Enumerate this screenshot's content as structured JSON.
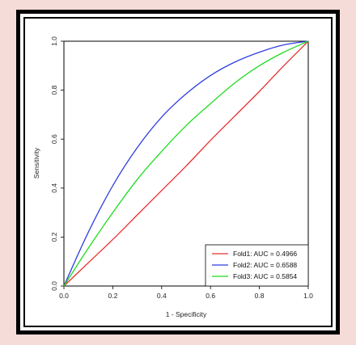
{
  "chart_data": {
    "type": "line",
    "title": "",
    "xlabel": "1 - Specificity",
    "ylabel": "Sensitivity",
    "xlim": [
      0,
      1
    ],
    "ylim": [
      0,
      1
    ],
    "xticks": [
      "0.0",
      "0.2",
      "0.4",
      "0.6",
      "0.8",
      "1.0"
    ],
    "yticks": [
      "0.0",
      "0.2",
      "0.4",
      "0.6",
      "0.8",
      "1.0"
    ],
    "grid": false,
    "legend_position": "bottom-right",
    "series": [
      {
        "name": "Fold1: AUC = 0.4966",
        "color": "#e8302f",
        "x": [
          0,
          0.1,
          0.2,
          0.3,
          0.4,
          0.5,
          0.6,
          0.7,
          0.8,
          0.9,
          1.0
        ],
        "y": [
          0,
          0.095,
          0.19,
          0.29,
          0.39,
          0.49,
          0.595,
          0.695,
          0.795,
          0.9,
          1.0
        ]
      },
      {
        "name": "Fold2: AUC = 0.6588",
        "color": "#2f3fe0",
        "x": [
          0,
          0.1,
          0.2,
          0.3,
          0.4,
          0.5,
          0.6,
          0.7,
          0.8,
          0.9,
          1.0
        ],
        "y": [
          0,
          0.22,
          0.41,
          0.565,
          0.69,
          0.785,
          0.86,
          0.915,
          0.955,
          0.985,
          1.0
        ]
      },
      {
        "name": "Fold3: AUC = 0.5854",
        "color": "#1fdc1f",
        "x": [
          0,
          0.1,
          0.2,
          0.3,
          0.4,
          0.5,
          0.6,
          0.7,
          0.8,
          0.9,
          1.0
        ],
        "y": [
          0,
          0.155,
          0.3,
          0.435,
          0.55,
          0.655,
          0.745,
          0.83,
          0.9,
          0.955,
          1.0
        ]
      }
    ]
  }
}
